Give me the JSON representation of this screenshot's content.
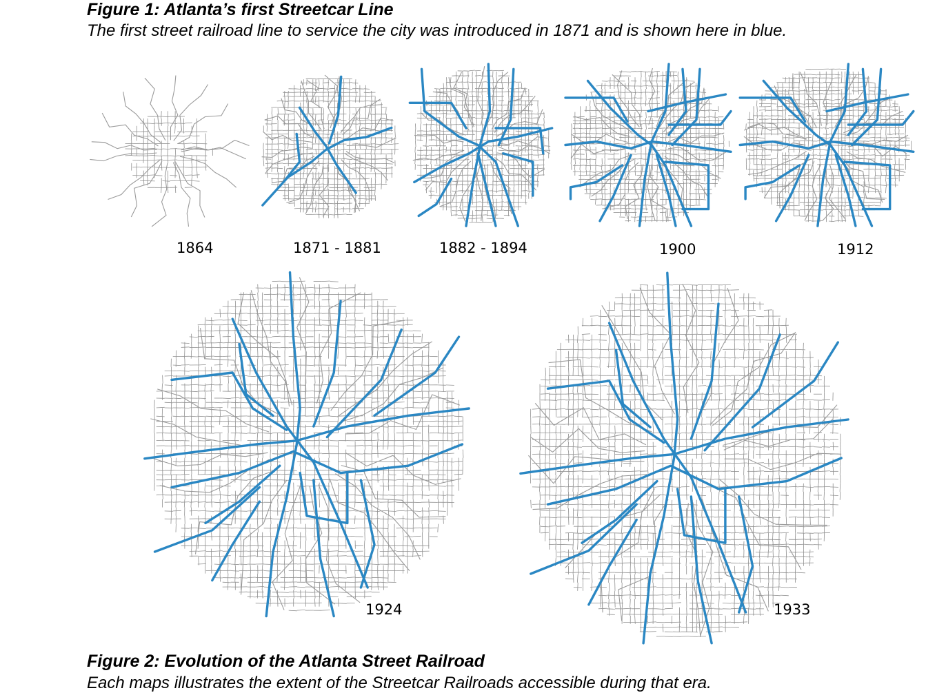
{
  "figure1": {
    "title": "Figure 1: Atlanta’s first Streetcar Line",
    "description": "The first street railroad line to service the city was introduced in 1871 and is shown here in blue."
  },
  "figure2": {
    "title": "Figure 2: Evolution of the Atlanta Street Railroad",
    "description": "Each maps illustrates the extent of the Streetcar Railroads accessible during that era."
  },
  "colors": {
    "streetcar": "#2a87c3",
    "streets": "#8f8f8f"
  },
  "maps": [
    {
      "label": "1864",
      "streetcar_level": 0
    },
    {
      "label": "1871 - 1881",
      "streetcar_level": 1
    },
    {
      "label": "1882 - 1894",
      "streetcar_level": 2
    },
    {
      "label": "1900",
      "streetcar_level": 3
    },
    {
      "label": "1912",
      "streetcar_level": 3
    },
    {
      "label": "1924",
      "streetcar_level": 4
    },
    {
      "label": "1933",
      "streetcar_level": 4
    }
  ]
}
